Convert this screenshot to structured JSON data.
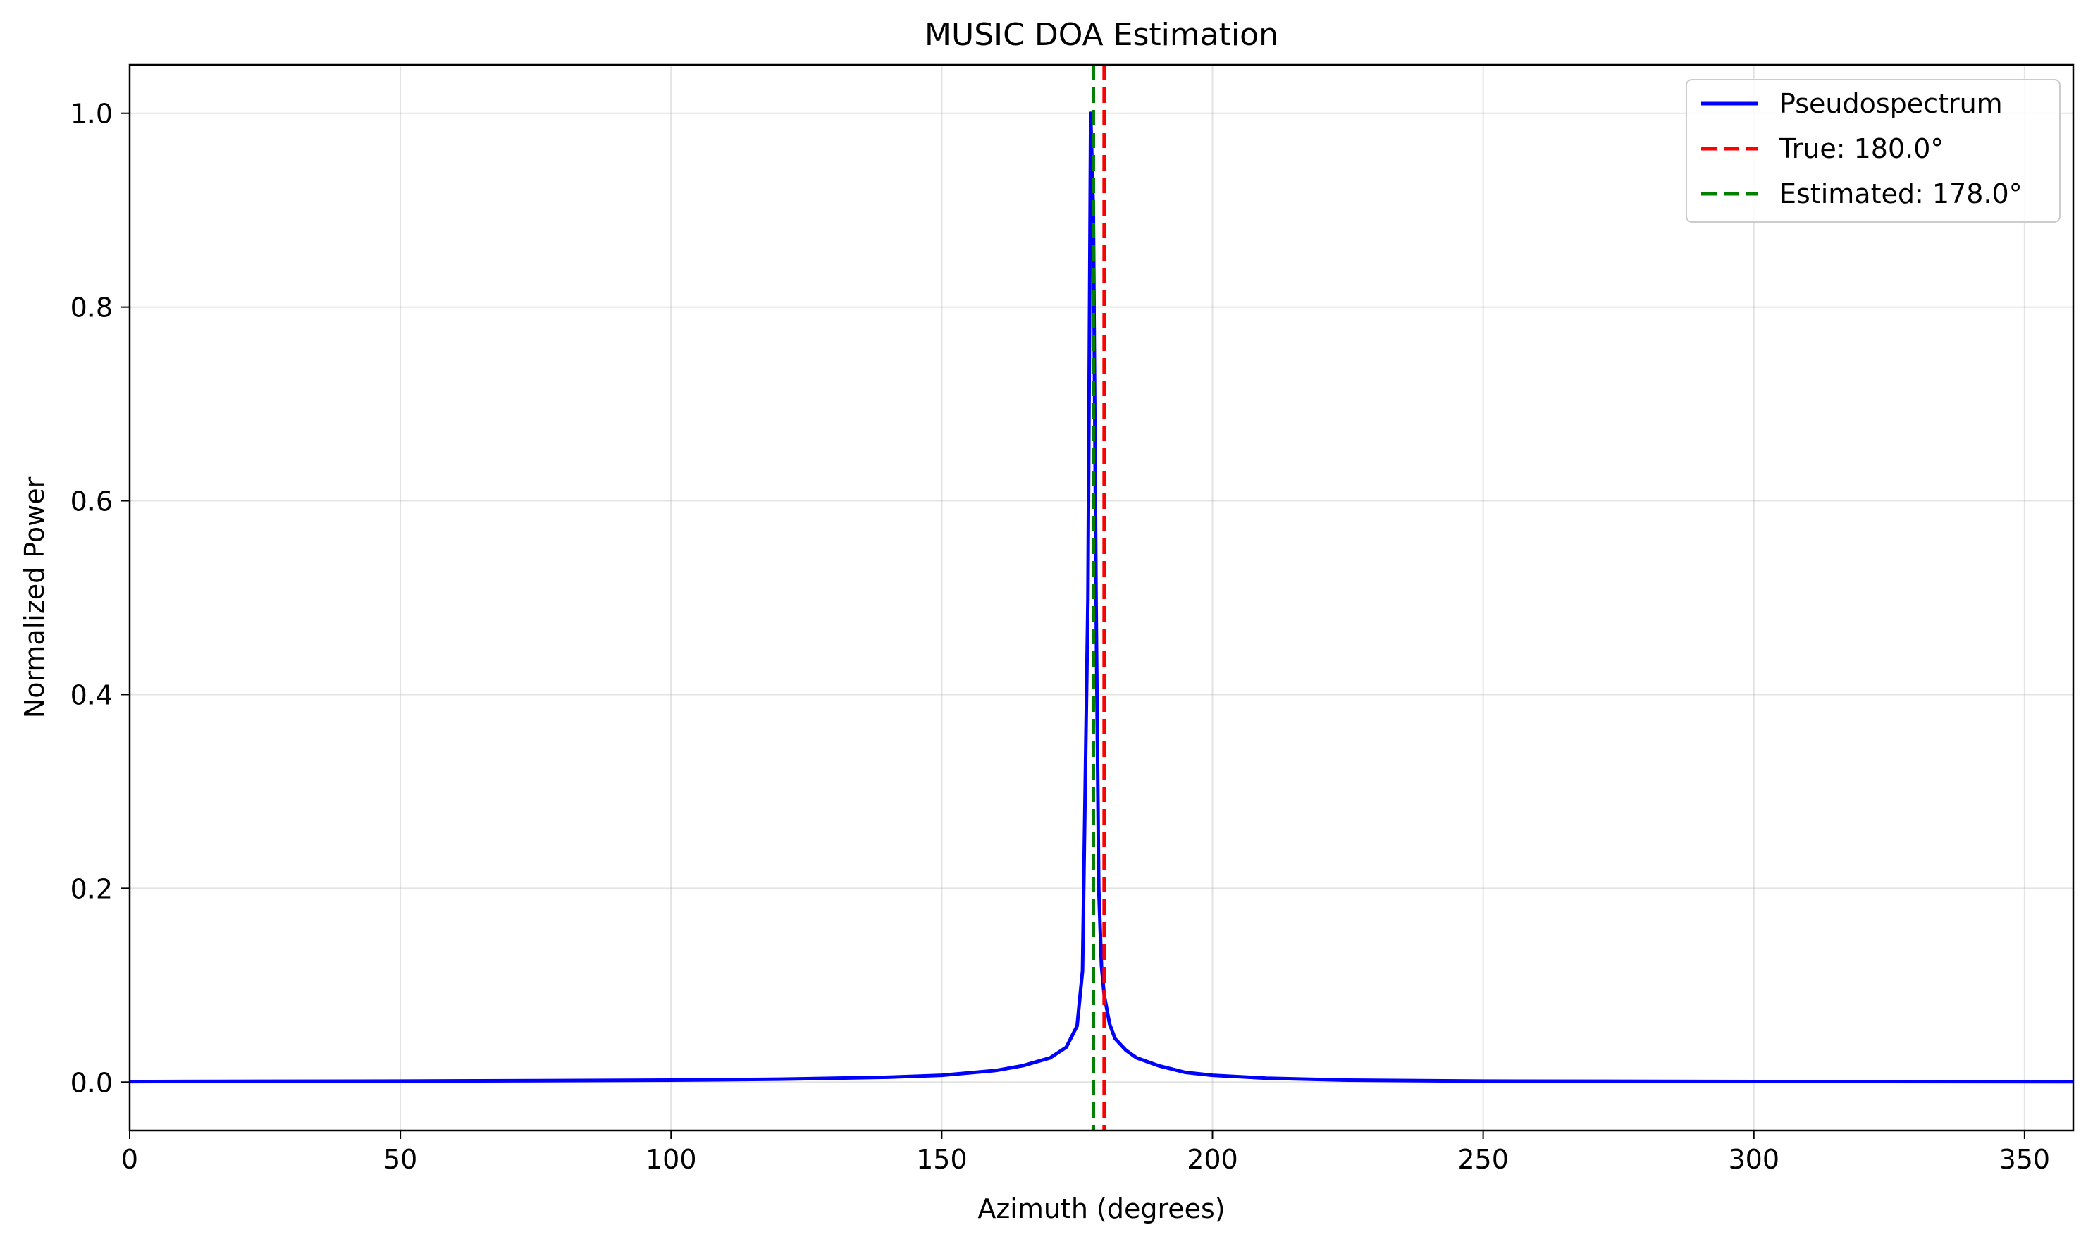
{
  "chart_data": {
    "type": "line",
    "title": "MUSIC DOA Estimation",
    "xlabel": "Azimuth (degrees)",
    "ylabel": "Normalized Power",
    "xlim": [
      0,
      359
    ],
    "ylim": [
      -0.05,
      1.05
    ],
    "x_ticks": [
      0,
      50,
      100,
      150,
      200,
      250,
      300,
      350
    ],
    "y_ticks": [
      0.0,
      0.2,
      0.4,
      0.6,
      0.8,
      1.0
    ],
    "x_tick_labels": [
      "0",
      "50",
      "100",
      "150",
      "200",
      "250",
      "300",
      "350"
    ],
    "y_tick_labels": [
      "0.0",
      "0.2",
      "0.4",
      "0.6",
      "0.8",
      "1.0"
    ],
    "grid": true,
    "legend_position": "upper right",
    "series": [
      {
        "name": "Pseudospectrum",
        "style": "solid",
        "color": "#0000ff",
        "x": [
          0,
          25,
          50,
          75,
          100,
          120,
          140,
          150,
          160,
          165,
          170,
          173,
          175,
          176,
          177,
          177.5,
          178,
          178.5,
          179,
          179.5,
          180,
          181,
          182,
          184,
          186,
          190,
          195,
          200,
          210,
          225,
          250,
          300,
          359
        ],
        "y": [
          0.0005,
          0.0008,
          0.001,
          0.0015,
          0.002,
          0.003,
          0.005,
          0.007,
          0.012,
          0.017,
          0.025,
          0.036,
          0.058,
          0.115,
          0.5,
          1.0,
          0.9,
          0.5,
          0.2,
          0.12,
          0.09,
          0.06,
          0.045,
          0.033,
          0.025,
          0.017,
          0.01,
          0.007,
          0.004,
          0.002,
          0.001,
          0.0006,
          0.0004
        ]
      },
      {
        "name": "True: 180.0°",
        "style": "dashed",
        "color": "#ff0000",
        "vline": 180.0
      },
      {
        "name": "Estimated: 178.0°",
        "style": "dashed",
        "color": "#008000",
        "vline": 178.0
      }
    ]
  }
}
